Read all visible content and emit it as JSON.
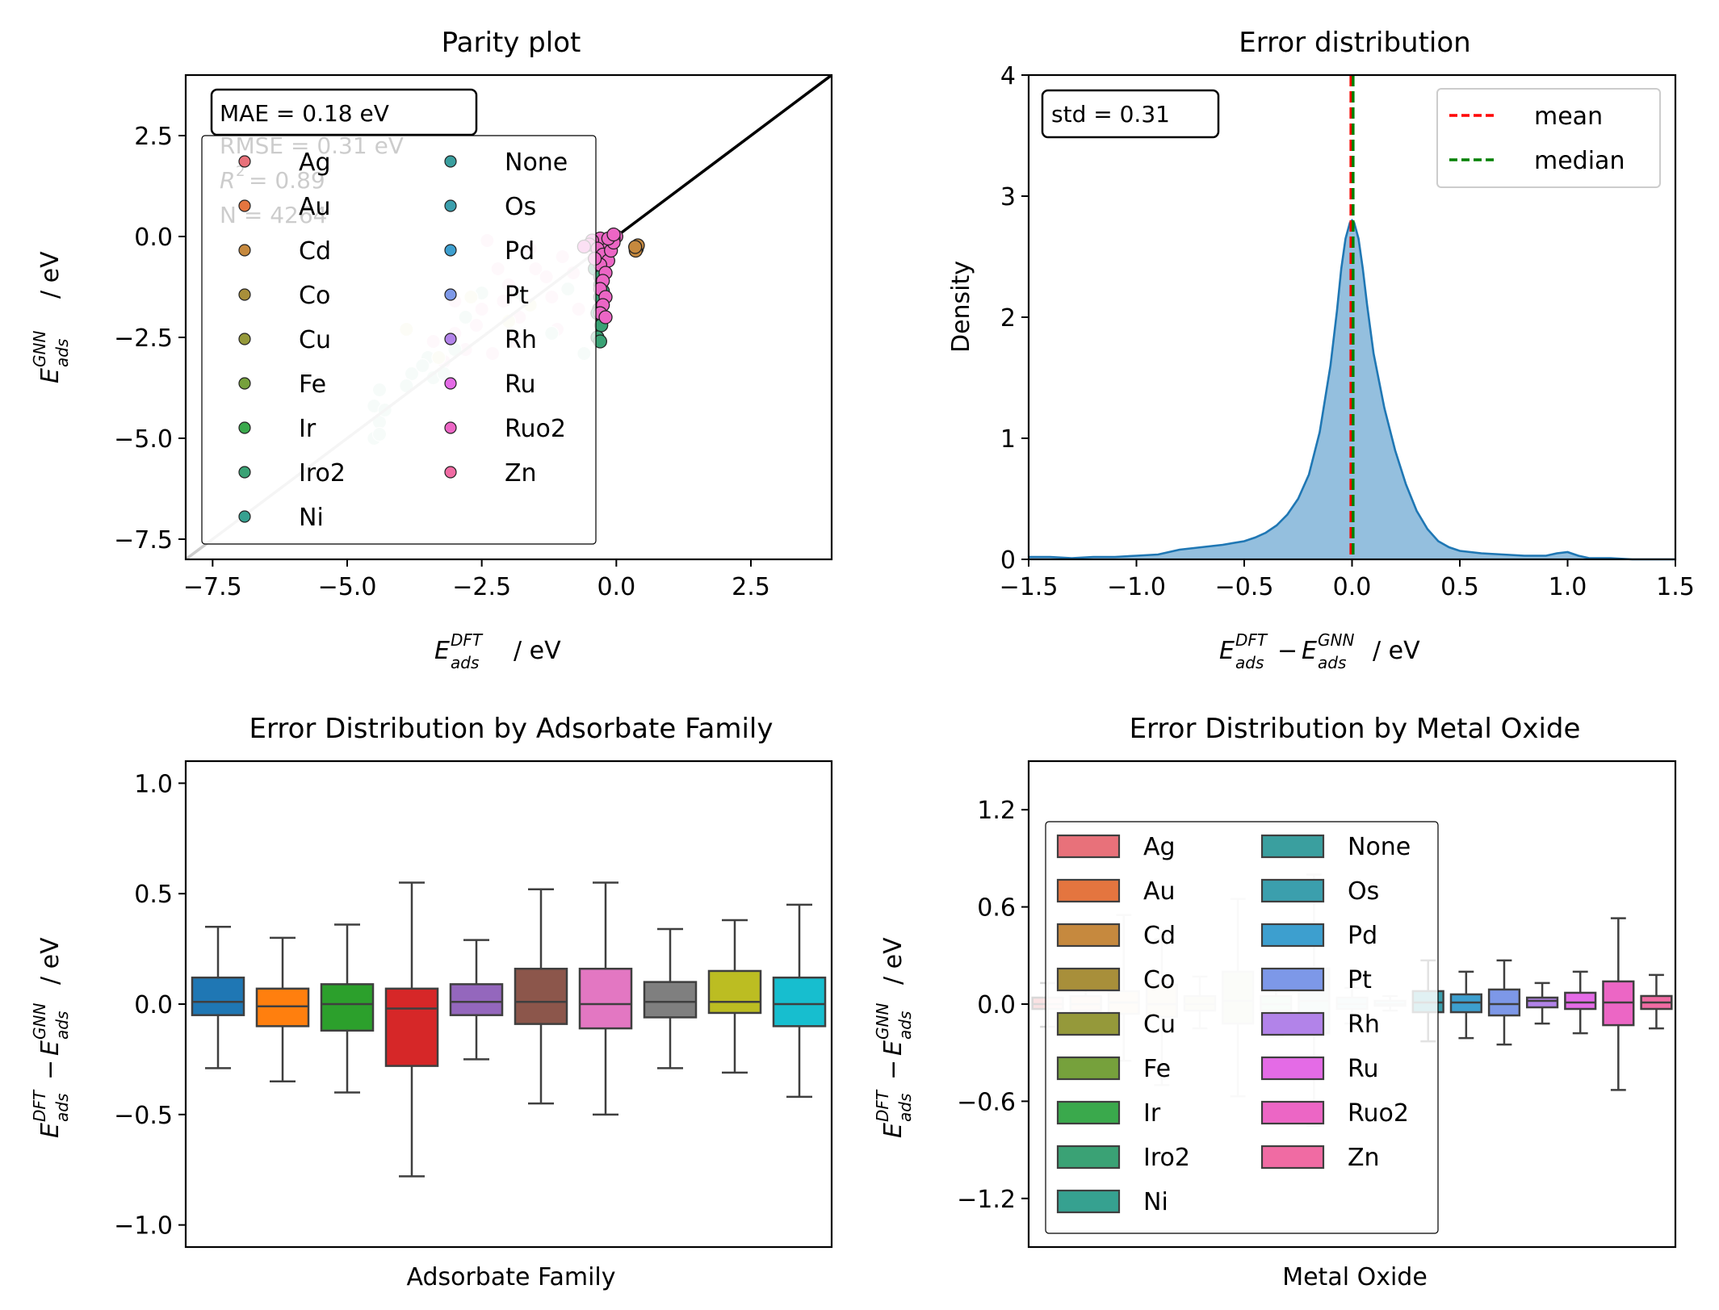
{
  "colors": {
    "metals": [
      "#e8717a",
      "#e4753f",
      "#c6893e",
      "#a88f3a",
      "#95993a",
      "#76a13c",
      "#3aa94c",
      "#3aa275",
      "#36a190",
      "#3a9f9f",
      "#3b9fad",
      "#3d9fcf",
      "#7d98e8",
      "#b283e9",
      "#e46be6",
      "#ec66c5",
      "#f06ba3"
    ],
    "families": [
      "#1f77b4",
      "#ff7f0e",
      "#2ca02c",
      "#d62728",
      "#9467bd",
      "#8c564b",
      "#e377c2",
      "#7f7f7f",
      "#bcbd22",
      "#17becf"
    ],
    "kde_fill": "#8ebcdc",
    "kde_line": "#1f77b4",
    "mean": "#ff0000",
    "median": "#008000"
  },
  "panels": {
    "parity": {
      "title": "Parity plot",
      "xlabel_main": "E",
      "xlabel_sup": "DFT",
      "xlabel_sub": "ads",
      "xlabel_unit": "/ eV",
      "ylabel_main": "E",
      "ylabel_sup": "GNN",
      "ylabel_sub": "ads",
      "ylabel_unit": "/ eV",
      "stats": {
        "mae": "MAE = 0.18 eV",
        "rmse": "RMSE = 0.31 eV",
        "r2": "= 0.89",
        "r2_sym": "R",
        "r2_sup": "2",
        "n": "N = 4264"
      }
    },
    "error": {
      "title": "Error distribution",
      "ylabel": "Density",
      "std": "std = 0.31",
      "legend": [
        "mean",
        "median"
      ]
    },
    "family": {
      "title": "Error Distribution by Adsorbate Family",
      "xlabel": "Adsorbate Family"
    },
    "oxide": {
      "title": "Error Distribution by Metal Oxide",
      "xlabel": "Metal Oxide"
    },
    "diff_label": {
      "e": "E",
      "dft": "DFT",
      "gnn": "GNN",
      "ads": "ads",
      "minus": "−",
      "unit": "/ eV"
    }
  },
  "chart_data": [
    {
      "type": "scatter",
      "title": "Parity plot",
      "xlim": [
        -8,
        4
      ],
      "ylim": [
        -8,
        4
      ],
      "xticks": [
        "−7.5",
        "−5.0",
        "−2.5",
        "0.0",
        "2.5"
      ],
      "yticks": [
        "2.5",
        "0.0",
        "−2.5",
        "−5.0",
        "−7.5"
      ],
      "xtick_values": [
        -7.5,
        -5,
        -2.5,
        0,
        2.5
      ],
      "ytick_values": [
        2.5,
        0,
        -2.5,
        -5,
        -7.5
      ],
      "legend": [
        "Ag",
        "Au",
        "Cd",
        "Co",
        "Cu",
        "Fe",
        "Ir",
        "Iro2",
        "Ni",
        "None",
        "Os",
        "Pd",
        "Pt",
        "Rh",
        "Ru",
        "Ruo2",
        "Zn"
      ],
      "legend_placement": "upper-left, 2 columns",
      "parity_line": [
        [
          -8,
          -8
        ],
        [
          4,
          4
        ]
      ],
      "highlight_series": {
        "Cd": [
          [
            0.38,
            -0.3
          ],
          [
            0.4,
            -0.22
          ],
          [
            0.36,
            -0.35
          ],
          [
            0.35,
            -0.26
          ]
        ],
        "Iro2": [
          [
            -0.3,
            -1.2
          ],
          [
            -0.3,
            -1.5
          ],
          [
            -0.32,
            -1.8
          ],
          [
            -0.28,
            -2.2
          ],
          [
            -0.35,
            -2.5
          ],
          [
            -0.3,
            -2.6
          ],
          [
            -0.2,
            -0.5
          ],
          [
            -0.4,
            -0.8
          ],
          [
            -0.3,
            -1.0
          ],
          [
            -0.25,
            -1.35
          ],
          [
            -0.35,
            -1.9
          ]
        ],
        "Ruo2": [
          [
            0.0,
            0.0
          ],
          [
            -0.05,
            -0.05
          ],
          [
            -0.1,
            -0.15
          ],
          [
            -0.2,
            -0.2
          ],
          [
            -0.3,
            -0.05
          ],
          [
            -0.45,
            -0.1
          ],
          [
            -0.5,
            -0.2
          ],
          [
            -0.35,
            -0.3
          ],
          [
            -0.25,
            -0.45
          ],
          [
            -0.15,
            -0.6
          ],
          [
            -0.3,
            -0.7
          ],
          [
            -0.4,
            -0.55
          ],
          [
            -0.2,
            -0.9
          ],
          [
            -0.25,
            -1.1
          ],
          [
            -0.3,
            -1.3
          ],
          [
            -0.2,
            -1.5
          ],
          [
            -0.25,
            -1.7
          ],
          [
            -0.3,
            -1.9
          ],
          [
            -0.2,
            -2.0
          ],
          [
            -0.1,
            -0.35
          ],
          [
            -0.05,
            -0.15
          ],
          [
            -0.6,
            -0.25
          ],
          [
            -0.15,
            -0.05
          ],
          [
            -0.05,
            0.05
          ]
        ]
      },
      "background_cloud": {
        "light_pink": [
          [
            -0.5,
            -0.3
          ],
          [
            -1.0,
            -0.5
          ],
          [
            -1.5,
            -0.8
          ],
          [
            -2.0,
            -1.2
          ],
          [
            -2.5,
            -1.8
          ],
          [
            -3.0,
            -2.4
          ],
          [
            -2.2,
            -0.8
          ],
          [
            -1.2,
            -1.5
          ],
          [
            -0.8,
            -0.9
          ],
          [
            -1.8,
            -2.0
          ],
          [
            -2.8,
            -2.8
          ],
          [
            -3.2,
            -3.1
          ],
          [
            -2.4,
            -0.1
          ],
          [
            -1.6,
            -0.3
          ],
          [
            -0.3,
            -0.6
          ],
          [
            -1.3,
            -1.0
          ],
          [
            -2.1,
            -1.6
          ],
          [
            -2.6,
            -2.2
          ],
          [
            -3.0,
            -1.6
          ],
          [
            -1.9,
            -2.6
          ],
          [
            -0.7,
            -1.8
          ],
          [
            -1.1,
            -2.3
          ],
          [
            -3.4,
            -2.6
          ],
          [
            -2.3,
            -2.9
          ]
        ],
        "light_green": [
          [
            -4.4,
            -3.8
          ],
          [
            -4.5,
            -4.2
          ],
          [
            -4.4,
            -4.6
          ],
          [
            -4.5,
            -5.0
          ],
          [
            -4.4,
            -4.9
          ],
          [
            -3.5,
            -3.0
          ],
          [
            -3.8,
            -3.4
          ],
          [
            -3.4,
            -3.5
          ],
          [
            -3.0,
            -2.8
          ],
          [
            -2.8,
            -2.0
          ],
          [
            -3.6,
            -3.2
          ],
          [
            -3.2,
            -3.4
          ],
          [
            -2.5,
            -1.4
          ],
          [
            -1.2,
            -2.4
          ],
          [
            -1.8,
            -1.4
          ],
          [
            -0.9,
            -1.3
          ],
          [
            -0.6,
            -2.9
          ],
          [
            -3.9,
            -3.7
          ],
          [
            -4.3,
            -4.3
          ]
        ],
        "light_yellow": [
          [
            -3.9,
            -2.3
          ],
          [
            -2.0,
            -2.1
          ],
          [
            -1.6,
            -1.7
          ],
          [
            -2.7,
            -1.5
          ],
          [
            -3.3,
            -3.0
          ]
        ]
      }
    },
    {
      "type": "area",
      "title": "Error distribution",
      "xlim": [
        -1.5,
        1.5
      ],
      "ylim": [
        0,
        4
      ],
      "xticks": [
        "−1.5",
        "−1.0",
        "−0.5",
        "0.0",
        "0.5",
        "1.0",
        "1.5"
      ],
      "yticks": [
        "0",
        "1",
        "2",
        "3",
        "4"
      ],
      "xtick_values": [
        -1.5,
        -1.0,
        -0.5,
        0,
        0.5,
        1.0,
        1.5
      ],
      "ytick_values": [
        0,
        1,
        2,
        3,
        4
      ],
      "x": [
        -1.5,
        -1.4,
        -1.3,
        -1.2,
        -1.1,
        -1.0,
        -0.9,
        -0.8,
        -0.7,
        -0.6,
        -0.5,
        -0.45,
        -0.4,
        -0.35,
        -0.3,
        -0.25,
        -0.2,
        -0.15,
        -0.1,
        -0.07,
        -0.05,
        -0.03,
        -0.01,
        0.0,
        0.01,
        0.03,
        0.05,
        0.07,
        0.1,
        0.15,
        0.2,
        0.25,
        0.3,
        0.35,
        0.4,
        0.45,
        0.5,
        0.6,
        0.7,
        0.8,
        0.9,
        0.95,
        1.0,
        1.05,
        1.1,
        1.2,
        1.3,
        1.4,
        1.5
      ],
      "y": [
        0.02,
        0.02,
        0.01,
        0.02,
        0.02,
        0.03,
        0.04,
        0.08,
        0.1,
        0.12,
        0.15,
        0.18,
        0.22,
        0.28,
        0.37,
        0.5,
        0.7,
        1.05,
        1.6,
        2.05,
        2.4,
        2.65,
        2.78,
        2.8,
        2.78,
        2.65,
        2.4,
        2.1,
        1.7,
        1.25,
        0.9,
        0.62,
        0.4,
        0.25,
        0.15,
        0.1,
        0.07,
        0.05,
        0.04,
        0.03,
        0.03,
        0.05,
        0.06,
        0.03,
        0.01,
        0.01,
        0.0,
        0.0,
        0.0
      ],
      "mean": -0.005,
      "median": 0.005
    },
    {
      "type": "box",
      "title": "Error Distribution by Adsorbate Family",
      "ylim": [
        -1.1,
        1.1
      ],
      "yticks": [
        "1.0",
        "0.5",
        "0.0",
        "−0.5",
        "−1.0"
      ],
      "ytick_values": [
        1.0,
        0.5,
        0.0,
        -0.5,
        -1.0
      ],
      "boxes": [
        {
          "wl": -0.29,
          "q1": -0.05,
          "med": 0.01,
          "q3": 0.12,
          "wh": 0.35
        },
        {
          "wl": -0.35,
          "q1": -0.1,
          "med": -0.01,
          "q3": 0.07,
          "wh": 0.3
        },
        {
          "wl": -0.4,
          "q1": -0.12,
          "med": 0.0,
          "q3": 0.09,
          "wh": 0.36
        },
        {
          "wl": -0.78,
          "q1": -0.28,
          "med": -0.02,
          "q3": 0.07,
          "wh": 0.55
        },
        {
          "wl": -0.25,
          "q1": -0.05,
          "med": 0.01,
          "q3": 0.09,
          "wh": 0.29
        },
        {
          "wl": -0.45,
          "q1": -0.09,
          "med": 0.01,
          "q3": 0.16,
          "wh": 0.52
        },
        {
          "wl": -0.5,
          "q1": -0.11,
          "med": 0.0,
          "q3": 0.16,
          "wh": 0.55
        },
        {
          "wl": -0.29,
          "q1": -0.06,
          "med": 0.01,
          "q3": 0.1,
          "wh": 0.34
        },
        {
          "wl": -0.31,
          "q1": -0.04,
          "med": 0.01,
          "q3": 0.15,
          "wh": 0.38
        },
        {
          "wl": -0.42,
          "q1": -0.1,
          "med": 0.0,
          "q3": 0.12,
          "wh": 0.45
        }
      ]
    },
    {
      "type": "box",
      "title": "Error Distribution by Metal Oxide",
      "ylim": [
        -1.5,
        1.5
      ],
      "yticks": [
        "1.2",
        "0.6",
        "0.0",
        "−0.6",
        "−1.2"
      ],
      "ytick_values": [
        1.2,
        0.6,
        0.0,
        -0.6,
        -1.2
      ],
      "legend": [
        "Ag",
        "Au",
        "Cd",
        "Co",
        "Cu",
        "Fe",
        "Ir",
        "Iro2",
        "Ni",
        "None",
        "Os",
        "Pd",
        "Pt",
        "Rh",
        "Ru",
        "Ruo2",
        "Zn"
      ],
      "legend_placement": "center-left, 2 columns",
      "boxes": [
        {
          "wl": -0.14,
          "q1": -0.03,
          "med": 0.0,
          "q3": 0.04,
          "wh": 0.13
        },
        {
          "wl": -0.18,
          "q1": -0.04,
          "med": 0.0,
          "q3": 0.05,
          "wh": 0.18
        },
        {
          "wl": -0.35,
          "q1": -0.06,
          "med": 0.01,
          "q3": 0.08,
          "wh": 0.55
        },
        {
          "wl": -0.5,
          "q1": -0.08,
          "med": 0.0,
          "q3": 0.12,
          "wh": 0.4
        },
        {
          "wl": -0.15,
          "q1": -0.04,
          "med": 0.0,
          "q3": 0.05,
          "wh": 0.17
        },
        {
          "wl": -0.57,
          "q1": -0.12,
          "med": 0.02,
          "q3": 0.2,
          "wh": 0.65
        },
        {
          "wl": -0.2,
          "q1": -0.04,
          "med": 0.0,
          "q3": 0.05,
          "wh": 0.2
        },
        {
          "wl": -0.75,
          "q1": -0.18,
          "med": 0.02,
          "q3": 0.22,
          "wh": 0.8
        },
        {
          "wl": -0.12,
          "q1": -0.03,
          "med": 0.0,
          "q3": 0.04,
          "wh": 0.1
        },
        {
          "wl": -0.04,
          "q1": -0.01,
          "med": 0.0,
          "q3": 0.02,
          "wh": 0.05
        },
        {
          "wl": -0.23,
          "q1": -0.05,
          "med": 0.01,
          "q3": 0.08,
          "wh": 0.27
        },
        {
          "wl": -0.21,
          "q1": -0.05,
          "med": 0.01,
          "q3": 0.06,
          "wh": 0.2
        },
        {
          "wl": -0.25,
          "q1": -0.07,
          "med": 0.0,
          "q3": 0.09,
          "wh": 0.27
        },
        {
          "wl": -0.12,
          "q1": -0.02,
          "med": 0.02,
          "q3": 0.04,
          "wh": 0.13
        },
        {
          "wl": -0.18,
          "q1": -0.03,
          "med": 0.01,
          "q3": 0.07,
          "wh": 0.2
        },
        {
          "wl": -0.53,
          "q1": -0.13,
          "med": 0.01,
          "q3": 0.14,
          "wh": 0.53
        },
        {
          "wl": -0.15,
          "q1": -0.03,
          "med": 0.01,
          "q3": 0.05,
          "wh": 0.18
        }
      ],
      "faded_boxes": [
        true,
        true,
        true,
        true,
        true,
        true,
        true,
        true,
        true,
        true,
        false,
        false,
        false,
        false,
        false,
        false,
        false
      ]
    }
  ]
}
